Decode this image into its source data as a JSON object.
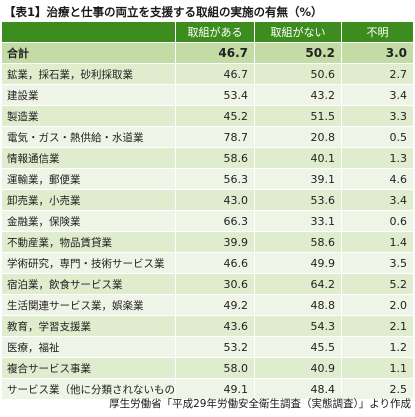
{
  "title": "【表1】治療と仕事の両立を支援する取組の実施の有無（%）",
  "source": "厚生労働省「平成29年労働安全衛生調査（実態調査）」より作成",
  "chart_data": {
    "type": "table",
    "columns": [
      "取組がある",
      "取組がない",
      "不明"
    ],
    "total": {
      "label": "合計",
      "values": [
        "46.7",
        "50.2",
        "3.0"
      ]
    },
    "rows": [
      {
        "label": "鉱業，採石業，砂利採取業",
        "values": [
          "46.7",
          "50.6",
          "2.7"
        ]
      },
      {
        "label": "建設業",
        "values": [
          "53.4",
          "43.2",
          "3.4"
        ]
      },
      {
        "label": "製造業",
        "values": [
          "45.2",
          "51.5",
          "3.3"
        ]
      },
      {
        "label": "電気・ガス・熱供給・水道業",
        "values": [
          "78.7",
          "20.8",
          "0.5"
        ]
      },
      {
        "label": "情報通信業",
        "values": [
          "58.6",
          "40.1",
          "1.3"
        ]
      },
      {
        "label": "運輸業，郵便業",
        "values": [
          "56.3",
          "39.1",
          "4.6"
        ]
      },
      {
        "label": "卸売業，小売業",
        "values": [
          "43.0",
          "53.6",
          "3.4"
        ]
      },
      {
        "label": "金融業，保険業",
        "values": [
          "66.3",
          "33.1",
          "0.6"
        ]
      },
      {
        "label": "不動産業，物品賃貸業",
        "values": [
          "39.9",
          "58.6",
          "1.4"
        ]
      },
      {
        "label": "学術研究，専門・技術サービス業",
        "values": [
          "46.6",
          "49.9",
          "3.5"
        ]
      },
      {
        "label": "宿泊業，飲食サービス業",
        "values": [
          "30.6",
          "64.2",
          "5.2"
        ]
      },
      {
        "label": "生活関連サービス業，娯楽業",
        "values": [
          "49.2",
          "48.8",
          "2.0"
        ]
      },
      {
        "label": "教育，学習支援業",
        "values": [
          "43.6",
          "54.3",
          "2.1"
        ]
      },
      {
        "label": "医療，福祉",
        "values": [
          "53.2",
          "45.5",
          "1.2"
        ]
      },
      {
        "label": "複合サービス事業",
        "values": [
          "58.0",
          "40.9",
          "1.1"
        ]
      },
      {
        "label": "サービス業（他に分類されないもの）",
        "values": [
          "49.1",
          "48.4",
          "2.5"
        ]
      }
    ]
  },
  "colors": {
    "header": "#3d8c1f",
    "total_row": "#c3dca6",
    "row_odd": "#dfeccd",
    "row_even": "#eef5e6"
  }
}
